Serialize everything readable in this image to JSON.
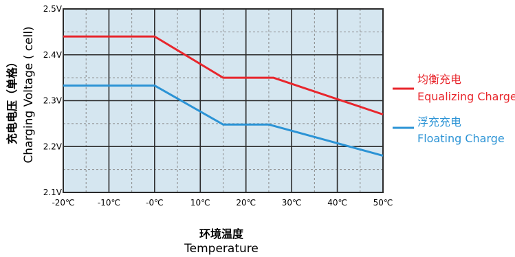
{
  "chart_data": {
    "type": "line",
    "x": [
      -20,
      -10,
      0,
      10,
      20,
      30,
      40,
      50
    ],
    "x_tick_labels": [
      "-20℃",
      "-10℃",
      "-0℃",
      "10℃",
      "20℃",
      "30℃",
      "40℃",
      "50℃"
    ],
    "y_ticks": [
      2.1,
      2.2,
      2.3,
      2.4,
      2.5
    ],
    "y_tick_labels": [
      "2.1V",
      "2.2V",
      "2.3V",
      "2.4V",
      "2.5V"
    ],
    "xlim": [
      -20,
      50
    ],
    "ylim": [
      2.1,
      2.5
    ],
    "grid": true,
    "xlabel_cn": "环境温度",
    "xlabel": "Temperature",
    "ylabel_cn": "充电电压（单格）",
    "ylabel": "Charging Voltage ( cell)",
    "legend_position": "right",
    "series": [
      {
        "name_cn": "均衡充电",
        "name": "Equalizing Charge",
        "color": "#e8262c",
        "points": [
          [
            -20,
            2.44
          ],
          [
            0,
            2.44
          ],
          [
            15,
            2.35
          ],
          [
            26,
            2.35
          ],
          [
            50,
            2.27
          ]
        ]
      },
      {
        "name_cn": "浮充充电",
        "name": "Floating Charge",
        "color": "#2b93d5",
        "points": [
          [
            -20,
            2.333
          ],
          [
            0,
            2.333
          ],
          [
            15,
            2.248
          ],
          [
            25,
            2.248
          ],
          [
            50,
            2.18
          ]
        ]
      }
    ],
    "colors": {
      "plot_background": "#d5e6f0",
      "grid_major": "#2a2a2a",
      "grid_minor": "#8a8a8a"
    }
  }
}
